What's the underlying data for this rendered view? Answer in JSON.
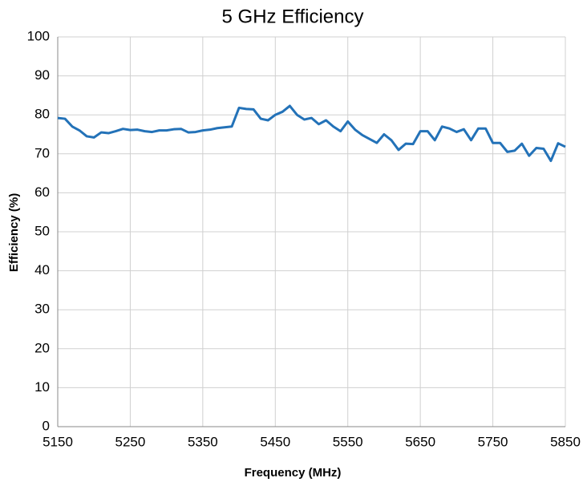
{
  "chart_data": {
    "type": "line",
    "title": "5 GHz Efficiency",
    "x_label": "Frequency (MHz)",
    "y_label": "Efficiency (%)",
    "x": [
      5150,
      5160,
      5170,
      5180,
      5190,
      5200,
      5210,
      5220,
      5230,
      5240,
      5250,
      5260,
      5270,
      5280,
      5290,
      5300,
      5310,
      5320,
      5330,
      5340,
      5350,
      5360,
      5370,
      5380,
      5390,
      5400,
      5410,
      5420,
      5430,
      5440,
      5450,
      5460,
      5470,
      5480,
      5490,
      5500,
      5510,
      5520,
      5530,
      5540,
      5550,
      5560,
      5570,
      5580,
      5590,
      5600,
      5610,
      5620,
      5630,
      5640,
      5650,
      5660,
      5670,
      5680,
      5690,
      5700,
      5710,
      5720,
      5730,
      5740,
      5750,
      5760,
      5770,
      5780,
      5790,
      5800,
      5810,
      5820,
      5830,
      5840,
      5850
    ],
    "series": [
      {
        "name": "Efficiency",
        "color": "#2372b8",
        "values": [
          79.2,
          79,
          77,
          76,
          74.5,
          74.2,
          75.5,
          75.3,
          75.8,
          76.4,
          76.1,
          76.2,
          75.8,
          75.6,
          76,
          76,
          76.3,
          76.4,
          75.5,
          75.6,
          76,
          76.2,
          76.6,
          76.8,
          77,
          81.8,
          81.5,
          81.4,
          79,
          78.6,
          80,
          80.8,
          82.3,
          80,
          78.8,
          79.2,
          77.6,
          78.6,
          77,
          75.8,
          78.3,
          76.2,
          74.8,
          73.8,
          72.8,
          75,
          73.5,
          71,
          72.6,
          72.5,
          75.8,
          75.8,
          73.5,
          77,
          76.5,
          75.6,
          76.3,
          73.5,
          76.5,
          76.5,
          72.8,
          72.8,
          70.5,
          70.8,
          72.6,
          69.5,
          71.5,
          71.3,
          68.2,
          72.7,
          71.8
        ]
      }
    ],
    "xlim": [
      5150,
      5850
    ],
    "xticks": [
      5150,
      5250,
      5350,
      5450,
      5550,
      5650,
      5750,
      5850
    ],
    "ylim": [
      0,
      100
    ],
    "yticks": [
      0,
      10,
      20,
      30,
      40,
      50,
      60,
      70,
      80,
      90,
      100
    ],
    "grid": true
  }
}
